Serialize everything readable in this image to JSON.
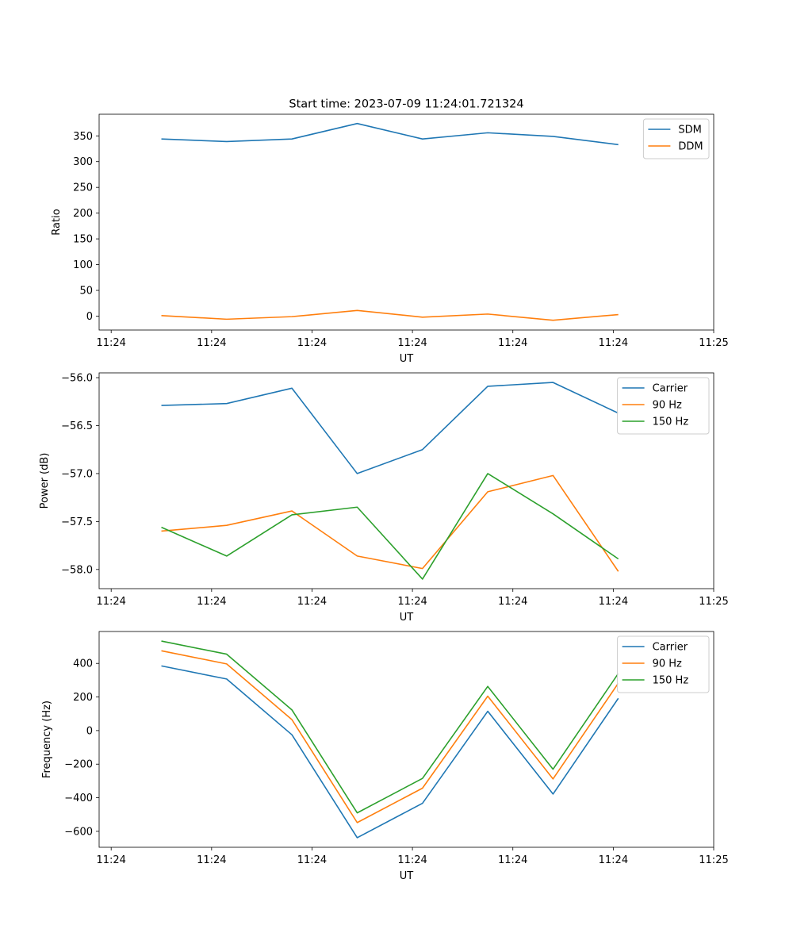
{
  "figure_title": "Start time: 2023-07-09 11:24:01.721324",
  "colors": {
    "c0": "#1f77b4",
    "c1": "#ff7f0e",
    "c2": "#2ca02c"
  },
  "chart_data": [
    {
      "type": "line",
      "title": "Start time: 2023-07-09 11:24:01.721324",
      "xlabel": "UT",
      "ylabel": "Ratio",
      "x_tick_labels": [
        "11:24",
        "11:24",
        "11:24",
        "11:24",
        "11:24",
        "11:24",
        "11:25"
      ],
      "x_ticks": [
        0,
        1,
        2,
        3,
        4,
        5,
        6
      ],
      "x": [
        0.5,
        1.15,
        1.8,
        2.45,
        3.1,
        3.75,
        4.4,
        5.05
      ],
      "xlim": [
        -0.12,
        6.0
      ],
      "ylim": [
        -27,
        392
      ],
      "y_ticks": [
        0,
        50,
        100,
        150,
        200,
        250,
        300,
        350
      ],
      "y_tick_labels": [
        "0",
        "50",
        "100",
        "150",
        "200",
        "250",
        "300",
        "350"
      ],
      "legend": "top-right",
      "series": [
        {
          "name": "SDM",
          "color": "#1f77b4",
          "values": [
            344,
            339,
            344,
            374,
            344,
            356,
            349,
            333
          ]
        },
        {
          "name": "DDM",
          "color": "#ff7f0e",
          "values": [
            1,
            -6,
            -1,
            11,
            -2,
            4,
            -8,
            3
          ]
        }
      ]
    },
    {
      "type": "line",
      "title": "",
      "xlabel": "UT",
      "ylabel": "Power (dB)",
      "x_tick_labels": [
        "11:24",
        "11:24",
        "11:24",
        "11:24",
        "11:24",
        "11:24",
        "11:25"
      ],
      "x_ticks": [
        0,
        1,
        2,
        3,
        4,
        5,
        6
      ],
      "x": [
        0.5,
        1.15,
        1.8,
        2.45,
        3.1,
        3.75,
        4.4,
        5.05
      ],
      "xlim": [
        -0.12,
        6.0
      ],
      "ylim": [
        -58.2,
        -55.95
      ],
      "y_ticks": [
        -58.0,
        -57.5,
        -57.0,
        -56.5,
        -56.0
      ],
      "y_tick_labels": [
        "−58.0",
        "−57.5",
        "−57.0",
        "−56.5",
        "−56.0"
      ],
      "legend": "top-right",
      "series": [
        {
          "name": "Carrier",
          "color": "#1f77b4",
          "values": [
            -56.29,
            -56.27,
            -56.11,
            -57.0,
            -56.75,
            -56.09,
            -56.05,
            -56.37
          ]
        },
        {
          "name": "90 Hz",
          "color": "#ff7f0e",
          "values": [
            -57.6,
            -57.54,
            -57.39,
            -57.86,
            -57.99,
            -57.19,
            -57.02,
            -58.02
          ]
        },
        {
          "name": "150 Hz",
          "color": "#2ca02c",
          "values": [
            -57.56,
            -57.86,
            -57.43,
            -57.35,
            -58.1,
            -57.0,
            -57.42,
            -57.89
          ]
        }
      ]
    },
    {
      "type": "line",
      "title": "",
      "xlabel": "UT",
      "ylabel": "Frequency (Hz)",
      "x_tick_labels": [
        "11:24",
        "11:24",
        "11:24",
        "11:24",
        "11:24",
        "11:24",
        "11:25"
      ],
      "x_ticks": [
        0,
        1,
        2,
        3,
        4,
        5,
        6
      ],
      "x": [
        0.5,
        1.15,
        1.8,
        2.45,
        3.1,
        3.75,
        4.4,
        5.05
      ],
      "xlim": [
        -0.12,
        6.0
      ],
      "ylim": [
        -695,
        590
      ],
      "y_ticks": [
        -600,
        -400,
        -200,
        0,
        200,
        400
      ],
      "y_tick_labels": [
        "−600",
        "−400",
        "−200",
        "0",
        "200",
        "400"
      ],
      "legend": "top-right",
      "series": [
        {
          "name": "Carrier",
          "color": "#1f77b4",
          "values": [
            385,
            307,
            -25,
            -638,
            -433,
            115,
            -378,
            192
          ]
        },
        {
          "name": "90 Hz",
          "color": "#ff7f0e",
          "values": [
            475,
            397,
            65,
            -548,
            -343,
            205,
            -288,
            282
          ]
        },
        {
          "name": "150 Hz",
          "color": "#2ca02c",
          "values": [
            533,
            455,
            123,
            -490,
            -285,
            263,
            -230,
            340
          ]
        }
      ]
    }
  ]
}
